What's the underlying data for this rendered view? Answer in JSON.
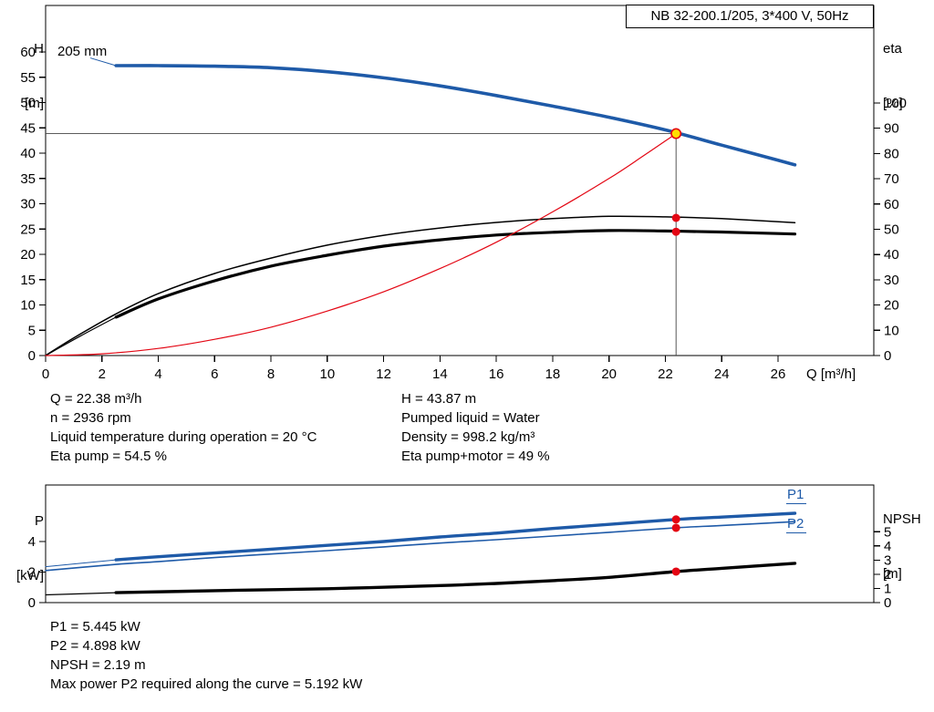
{
  "title_box": {
    "text": "NB 32-200.1/205, 3*400 V, 50Hz"
  },
  "axis_labels": {
    "h1": "H",
    "h2": "[m]",
    "eta1": "eta",
    "eta2": "[%]",
    "q": "Q [m³/h]",
    "p1": "P",
    "p2": "[kW]",
    "npsh1": "NPSH",
    "npsh2": "[m]"
  },
  "impeller_label": "205 mm",
  "p1_label": "P1",
  "p2_label": "P2",
  "colors": {
    "curve_blue": "#1E5AA8",
    "red": "#E30613",
    "duty_yellow": "#FFE000",
    "black": "#000000",
    "crosshair": "#444444"
  },
  "info_top_left": [
    "Q = 22.38 m³/h",
    "n = 2936 rpm",
    "Liquid temperature during operation = 20 °C",
    "Eta pump = 54.5 %"
  ],
  "info_top_right": [
    "H = 43.87 m",
    "Pumped liquid = Water",
    "Density = 998.2 kg/m³",
    "Eta pump+motor = 49 %"
  ],
  "info_bottom": [
    "P1 = 5.445 kW",
    "P2 = 4.898 kW",
    "NPSH = 2.19 m",
    "Max power P2 required along the curve = 5.192 kW"
  ],
  "chart_data": [
    {
      "id": "pump-head-efficiency-chart",
      "type": "line",
      "title": "NB 32-200.1/205, 3*400 V, 50Hz",
      "xlabel": "Q [m³/h]",
      "ylabel": "H [m]",
      "ylabel_right": "eta [%]",
      "x_axis": {
        "min": 0,
        "max": 29.4,
        "ticks": [
          0,
          2,
          4,
          6,
          8,
          10,
          12,
          14,
          16,
          18,
          20,
          22,
          24,
          26
        ],
        "show_tick_labels": true
      },
      "y_left": {
        "min": 0,
        "max": 69.2,
        "ticks": [
          0,
          5,
          10,
          15,
          20,
          25,
          30,
          35,
          40,
          45,
          50,
          55,
          60
        ]
      },
      "y_right": {
        "min": 0,
        "max": 138.6,
        "ticks": [
          0,
          10,
          20,
          30,
          40,
          50,
          60,
          70,
          80,
          90,
          100
        ]
      },
      "series": [
        {
          "id": "head-curve",
          "name": "H, impeller 205 mm",
          "axis": "left",
          "color": "#1E5AA8",
          "width": 3.6,
          "points": [
            [
              2.5,
              57.3
            ],
            [
              4,
              57.3
            ],
            [
              6,
              57.2
            ],
            [
              8,
              56.9
            ],
            [
              10,
              56.1
            ],
            [
              12,
              54.9
            ],
            [
              14,
              53.3
            ],
            [
              16,
              51.4
            ],
            [
              18,
              49.3
            ],
            [
              20,
              47.1
            ],
            [
              22,
              44.6
            ],
            [
              24,
              41.6
            ],
            [
              26,
              38.6
            ],
            [
              26.6,
              37.7
            ]
          ]
        },
        {
          "id": "impeller-label-pointer",
          "name": "205 mm label pointer",
          "axis": "left",
          "color": "#1E5AA8",
          "width": 1,
          "points": [
            [
              1.6,
              58.8
            ],
            [
              2.5,
              57.3
            ]
          ]
        },
        {
          "id": "eta-pump-curve",
          "name": "Eta pump",
          "axis": "right",
          "color": "#000000",
          "width": 1.5,
          "points": [
            [
              0,
              0
            ],
            [
              1,
              7
            ],
            [
              2.5,
              16.5
            ],
            [
              4,
              24.5
            ],
            [
              6,
              32.5
            ],
            [
              8,
              38.6
            ],
            [
              10,
              43.7
            ],
            [
              12,
              47.6
            ],
            [
              14,
              50.5
            ],
            [
              16,
              52.7
            ],
            [
              18,
              54.2
            ],
            [
              20,
              55.1
            ],
            [
              22,
              54.9
            ],
            [
              24,
              54.2
            ],
            [
              26.6,
              52.6
            ]
          ]
        },
        {
          "id": "eta-pump-motor-lead",
          "name": "Eta pump+motor lead-in",
          "axis": "right",
          "color": "#000000",
          "width": 1.2,
          "points": [
            [
              0,
              0
            ],
            [
              1.2,
              7.5
            ],
            [
              2.5,
              15.2
            ]
          ]
        },
        {
          "id": "eta-pump-motor-curve",
          "name": "Eta pump+motor",
          "axis": "right",
          "color": "#000000",
          "width": 3.2,
          "points": [
            [
              2.5,
              15.2
            ],
            [
              4,
              22.4
            ],
            [
              6,
              29.6
            ],
            [
              8,
              35.4
            ],
            [
              10,
              39.7
            ],
            [
              12,
              43.3
            ],
            [
              14,
              45.8
            ],
            [
              16,
              47.7
            ],
            [
              18,
              48.8
            ],
            [
              20,
              49.5
            ],
            [
              22,
              49.3
            ],
            [
              24,
              48.9
            ],
            [
              26.6,
              48.1
            ]
          ]
        },
        {
          "id": "system-curve",
          "name": "System curve",
          "axis": "left",
          "color": "#E30613",
          "width": 1.2,
          "points": [
            [
              0,
              0
            ],
            [
              2,
              0.35
            ],
            [
              4,
              1.4
            ],
            [
              6,
              3.2
            ],
            [
              8,
              5.6
            ],
            [
              10,
              8.8
            ],
            [
              12,
              12.6
            ],
            [
              14,
              17.2
            ],
            [
              16,
              22.4
            ],
            [
              18,
              28.4
            ],
            [
              20,
              35.0
            ],
            [
              21.2,
              39.4
            ],
            [
              22.38,
              43.87
            ]
          ]
        }
      ],
      "duty_point": {
        "q": 22.38,
        "h": 43.87,
        "eta_pump": 54.5,
        "eta_pump_motor": 49
      }
    },
    {
      "id": "power-npsh-chart",
      "type": "line",
      "xlabel": "Q [m³/h]",
      "ylabel": "P [kW]",
      "ylabel_right": "NPSH [m]",
      "x_axis": {
        "min": 0,
        "max": 29.4,
        "ticks": [],
        "show_tick_labels": false
      },
      "y_left": {
        "min": 0,
        "max": 7.7,
        "ticks": [
          0,
          2,
          4
        ]
      },
      "y_right": {
        "min": 0,
        "max": 8.3,
        "ticks": [
          0,
          1,
          2,
          3,
          4,
          5
        ]
      },
      "series": [
        {
          "id": "p1-lead",
          "name": "P1 lead-in",
          "axis": "left",
          "color": "#1E5AA8",
          "width": 1,
          "points": [
            [
              0,
              2.35
            ],
            [
              2.5,
              2.8
            ]
          ]
        },
        {
          "id": "p1-curve",
          "name": "P1",
          "axis": "left",
          "color": "#1E5AA8",
          "width": 3.4,
          "points": [
            [
              2.5,
              2.8
            ],
            [
              4,
              3.0
            ],
            [
              6,
              3.25
            ],
            [
              8,
              3.5
            ],
            [
              10,
              3.75
            ],
            [
              12,
              4.0
            ],
            [
              14,
              4.3
            ],
            [
              16,
              4.55
            ],
            [
              18,
              4.85
            ],
            [
              20,
              5.12
            ],
            [
              22.38,
              5.445
            ],
            [
              24,
              5.6
            ],
            [
              26.6,
              5.85
            ]
          ]
        },
        {
          "id": "p2-curve",
          "name": "P2",
          "axis": "left",
          "color": "#1E5AA8",
          "width": 1.6,
          "points": [
            [
              0,
              2.1
            ],
            [
              2.5,
              2.5
            ],
            [
              4,
              2.68
            ],
            [
              6,
              2.95
            ],
            [
              8,
              3.18
            ],
            [
              10,
              3.4
            ],
            [
              12,
              3.65
            ],
            [
              14,
              3.9
            ],
            [
              16,
              4.12
            ],
            [
              18,
              4.36
            ],
            [
              20,
              4.6
            ],
            [
              22.38,
              4.898
            ],
            [
              24,
              5.05
            ],
            [
              26.6,
              5.3
            ]
          ]
        },
        {
          "id": "npsh-lead",
          "name": "NPSH lead-in",
          "axis": "right",
          "color": "#000000",
          "width": 1.2,
          "points": [
            [
              0,
              0.55
            ],
            [
              2.5,
              0.7
            ]
          ]
        },
        {
          "id": "npsh-curve",
          "name": "NPSH",
          "axis": "right",
          "color": "#000000",
          "width": 3.4,
          "points": [
            [
              2.5,
              0.7
            ],
            [
              6,
              0.84
            ],
            [
              10,
              0.98
            ],
            [
              14,
              1.2
            ],
            [
              16,
              1.35
            ],
            [
              18,
              1.55
            ],
            [
              20,
              1.78
            ],
            [
              22.38,
              2.19
            ],
            [
              24,
              2.42
            ],
            [
              26.6,
              2.77
            ]
          ]
        }
      ],
      "duty_point": {
        "q": 22.38,
        "p1": 5.445,
        "p2": 4.898,
        "npsh": 2.19
      }
    }
  ]
}
